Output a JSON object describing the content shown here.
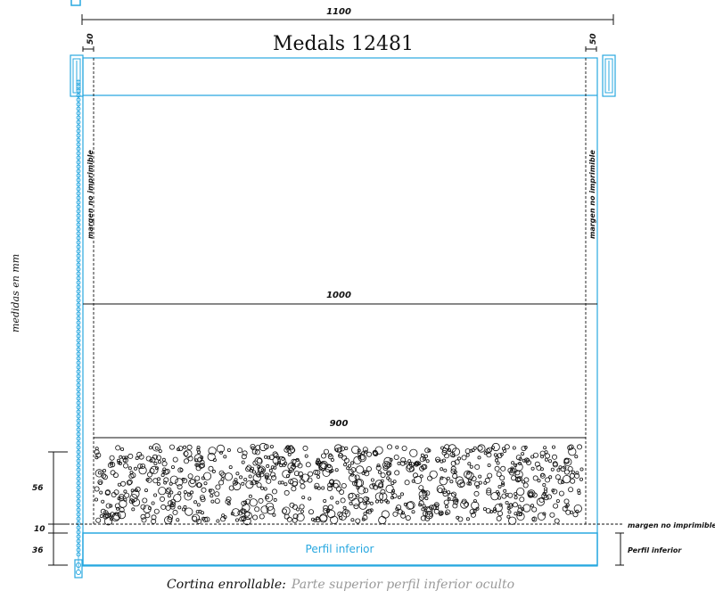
{
  "title": "Medals 12481",
  "dims": {
    "total_width": "1100",
    "side_margin_left": "50",
    "side_margin_right": "50",
    "width_1000": "1000",
    "width_900": "900",
    "h_56": "56",
    "h_10": "10",
    "h_36": "36"
  },
  "labels": {
    "units": "medidas en mm",
    "margin_vertical_left": "margen no imprimible",
    "margin_vertical_right": "margen no imprimible",
    "margin_bottom": "margen no imprimible",
    "profile_inside": "Perfil inferior",
    "profile_right": "Perfil inferior"
  },
  "caption": {
    "strong": "Cortina enrollable:",
    "rest": "Parte superior perfil inferior oculto"
  },
  "colors": {
    "blue": "#29a8e0",
    "line": "#111111",
    "caption_grey": "#9a9a9a"
  }
}
